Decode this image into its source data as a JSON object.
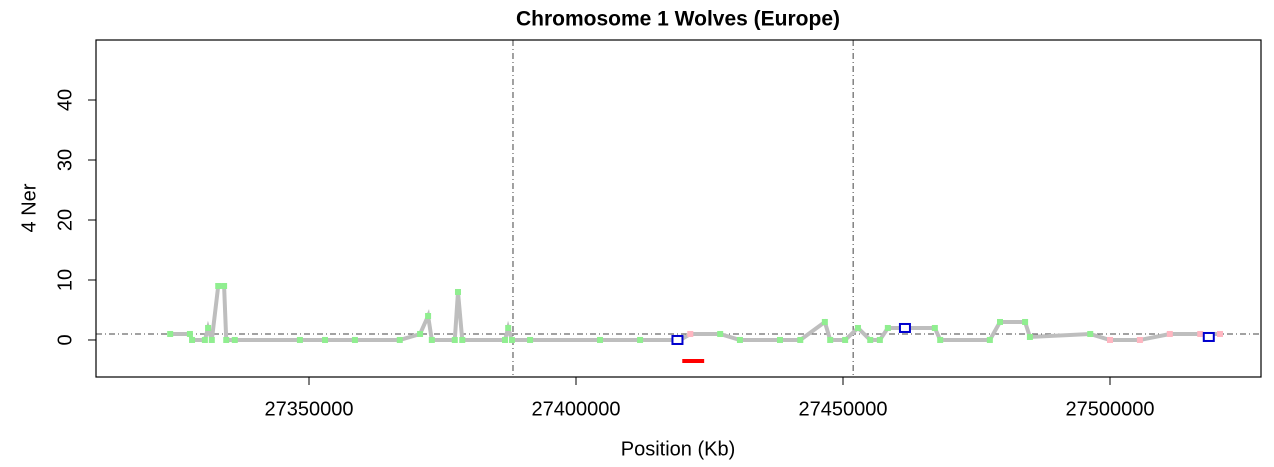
{
  "chart_data": {
    "type": "line",
    "title": "Chromosome 1 Wolves (Europe)",
    "x_label": "Position (Kb)",
    "y_label": "4 Ner",
    "xlim": [
      27310112,
      27528277
    ],
    "ylim": [
      -6.17,
      50
    ],
    "xticks": [
      27350000,
      27400000,
      27450000,
      27500000
    ],
    "yticks": [
      0,
      10,
      20,
      30,
      40
    ],
    "vlines": [
      27388200,
      27451900
    ],
    "hline": 1,
    "series": [
      {
        "color": "#bebebe",
        "marker": "line",
        "x": [
          27324000,
          27327700,
          27328100,
          27330500,
          27331100,
          27331800,
          27333000,
          27334100,
          27334500,
          27336100,
          27348300,
          27353000,
          27358600,
          27367000,
          27370800,
          27372300,
          27373000,
          27377300,
          27377900,
          27378700,
          27386700,
          27387300,
          27388000,
          27391400,
          27404500,
          27412000,
          27419500,
          27421400,
          27427000,
          27430700,
          27438200,
          27442000,
          27446600,
          27447600,
          27450400,
          27452800,
          27455100,
          27456900,
          27458400,
          27461600,
          27467200,
          27468200,
          27477500,
          27479400,
          27484100,
          27485000,
          27496300,
          27500000,
          27505600,
          27511200,
          27516900,
          27520600
        ],
        "values": [
          1,
          1,
          0,
          0,
          2,
          0,
          9,
          9,
          0,
          0,
          0,
          0,
          0,
          0,
          1,
          4,
          0,
          0,
          8,
          0,
          0,
          2,
          0,
          0,
          0,
          0,
          0,
          1,
          1,
          0,
          0,
          0,
          3,
          0,
          0,
          2,
          0,
          0,
          2,
          2,
          2,
          0,
          0,
          3,
          3,
          0.5,
          1,
          0,
          0,
          1,
          1,
          1
        ]
      },
      {
        "color": "#90ee90",
        "marker": "point",
        "x": [
          27324000,
          27327700,
          27328100,
          27330500,
          27331100,
          27331800,
          27333000,
          27334100,
          27334500,
          27336100,
          27348300,
          27353000,
          27358600,
          27367000,
          27370800,
          27372300,
          27373000,
          27377300,
          27377900,
          27378700,
          27386700,
          27387300,
          27388000,
          27391400,
          27404500,
          27412000,
          27427000,
          27430700,
          27438200,
          27442000,
          27446600,
          27447600,
          27450400,
          27452800,
          27455100,
          27456900,
          27458400,
          27461600,
          27467200,
          27468200,
          27477500,
          27479400,
          27484100,
          27485000,
          27496300
        ],
        "values": [
          1,
          1,
          0,
          0,
          2,
          0,
          9,
          9,
          0,
          0,
          0,
          0,
          0,
          0,
          1,
          4,
          0,
          0,
          8,
          0,
          0,
          2,
          0,
          0,
          0,
          0,
          1,
          0,
          0,
          0,
          3,
          0,
          0,
          2,
          0,
          0,
          2,
          2,
          2,
          0,
          0,
          3,
          3,
          0.5,
          1
        ]
      },
      {
        "color": "#ffb6c1",
        "marker": "point",
        "x": [
          27419500,
          27421400,
          27500000,
          27505600,
          27511200,
          27516900,
          27520600
        ],
        "values": [
          0,
          1,
          0,
          0,
          1,
          1,
          1
        ]
      },
      {
        "color": "#ff0000",
        "marker": "line",
        "x": [
          27419900,
          27424000
        ],
        "values": [
          -3.5,
          -3.5
        ]
      },
      {
        "color": "#0000cd",
        "marker": "square",
        "x": [
          27419000,
          27461600,
          27518500
        ],
        "values": [
          0,
          2,
          0.5
        ]
      }
    ]
  }
}
